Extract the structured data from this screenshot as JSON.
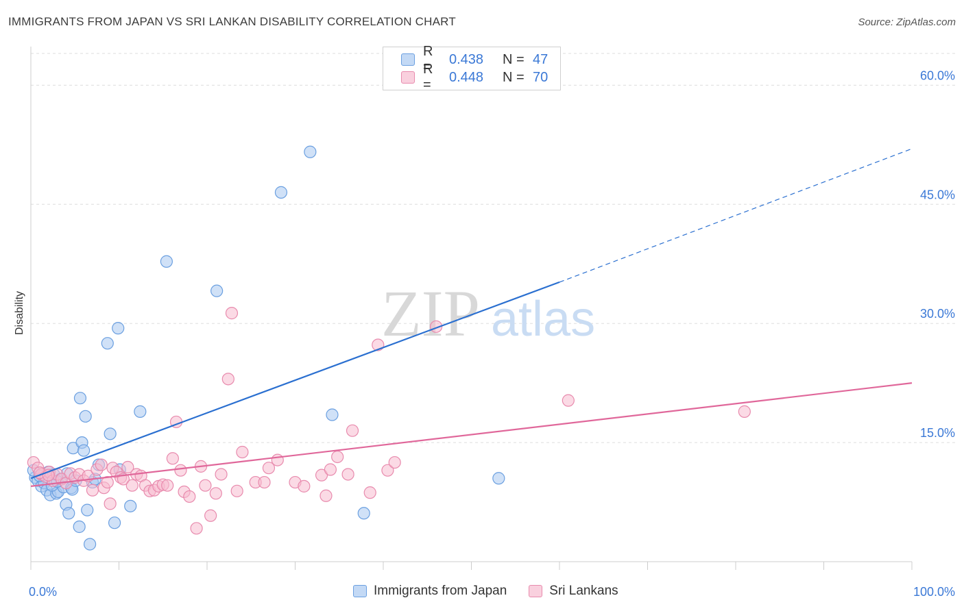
{
  "header": {
    "title": "IMMIGRANTS FROM JAPAN VS SRI LANKAN DISABILITY CORRELATION CHART",
    "source": "Source: ZipAtlas.com"
  },
  "legend": {
    "rows": [
      {
        "r_label": "R =",
        "r_value": "0.438",
        "n_label": "N =",
        "n_value": "47"
      },
      {
        "r_label": "R =",
        "r_value": "0.448",
        "n_label": "N =",
        "n_value": "70"
      }
    ],
    "bottom": [
      "Immigrants from Japan",
      "Sri Lankans"
    ]
  },
  "watermark": {
    "zip": "ZIP",
    "atlas": "atlas"
  },
  "colors": {
    "japan_fill": "#a9c8f0",
    "japan_stroke": "#6a9fe0",
    "japan_line": "#2a6fd0",
    "srilanka_fill": "#f7bcd0",
    "srilanka_stroke": "#e88aad",
    "srilanka_line": "#e0679a",
    "axis_text": "#3a78d6"
  },
  "chart_data": {
    "type": "scatter",
    "ylabel": "Disability",
    "xlabel": "",
    "xlim": [
      0,
      100
    ],
    "ylim": [
      0,
      64
    ],
    "x_tick_labels": [
      "0.0%",
      "100.0%"
    ],
    "y_ticks": [
      15,
      30,
      45,
      60
    ],
    "y_tick_labels": [
      "15.0%",
      "30.0%",
      "45.0%",
      "60.0%"
    ],
    "grid": "horizontal dashed",
    "legend_position": "top-center",
    "series": [
      {
        "name": "Immigrants from Japan",
        "points": [
          [
            0.5,
            10.6
          ],
          [
            0.8,
            10.2
          ],
          [
            1.2,
            9.5
          ],
          [
            1.5,
            9.9
          ],
          [
            1.8,
            9.0
          ],
          [
            2.0,
            11.3
          ],
          [
            2.2,
            8.4
          ],
          [
            2.6,
            11.0
          ],
          [
            2.9,
            8.6
          ],
          [
            3.1,
            8.8
          ],
          [
            3.4,
            10.4
          ],
          [
            3.7,
            9.4
          ],
          [
            4.1,
            11.1
          ],
          [
            4.0,
            7.2
          ],
          [
            4.3,
            6.1
          ],
          [
            4.6,
            9.3
          ],
          [
            4.8,
            14.3
          ],
          [
            4.7,
            9.1
          ],
          [
            5.1,
            10.2
          ],
          [
            5.5,
            4.4
          ],
          [
            5.6,
            20.6
          ],
          [
            5.8,
            15.0
          ],
          [
            6.0,
            14.0
          ],
          [
            6.2,
            18.3
          ],
          [
            6.4,
            6.5
          ],
          [
            6.7,
            2.2
          ],
          [
            7.0,
            10.0
          ],
          [
            7.3,
            10.4
          ],
          [
            7.7,
            12.2
          ],
          [
            8.7,
            27.5
          ],
          [
            9.0,
            16.1
          ],
          [
            9.5,
            4.9
          ],
          [
            9.9,
            29.4
          ],
          [
            10.1,
            11.6
          ],
          [
            11.3,
            7.0
          ],
          [
            12.4,
            18.9
          ],
          [
            15.4,
            37.8
          ],
          [
            21.1,
            34.1
          ],
          [
            28.4,
            46.5
          ],
          [
            31.7,
            51.6
          ],
          [
            34.2,
            18.5
          ],
          [
            37.8,
            6.1
          ],
          [
            53.1,
            10.5
          ],
          [
            0.3,
            11.5
          ],
          [
            1.0,
            10.8
          ],
          [
            2.4,
            9.6
          ],
          [
            3.0,
            10.1
          ]
        ]
      },
      {
        "name": "Sri Lankans",
        "points": [
          [
            0.3,
            12.5
          ],
          [
            0.8,
            11.8
          ],
          [
            1.2,
            11.0
          ],
          [
            1.7,
            10.7
          ],
          [
            2.1,
            11.3
          ],
          [
            2.5,
            10.2
          ],
          [
            3.0,
            11.0
          ],
          [
            3.5,
            10.4
          ],
          [
            4.0,
            9.9
          ],
          [
            4.5,
            11.1
          ],
          [
            5.0,
            10.6
          ],
          [
            5.5,
            11.0
          ],
          [
            6.0,
            10.2
          ],
          [
            6.5,
            10.8
          ],
          [
            7.0,
            9.0
          ],
          [
            7.5,
            11.6
          ],
          [
            8.0,
            12.2
          ],
          [
            8.3,
            9.3
          ],
          [
            8.7,
            10.0
          ],
          [
            9.0,
            7.3
          ],
          [
            9.3,
            11.8
          ],
          [
            9.7,
            11.3
          ],
          [
            10.2,
            10.6
          ],
          [
            10.5,
            10.4
          ],
          [
            11.0,
            11.9
          ],
          [
            11.5,
            9.6
          ],
          [
            12.0,
            11.0
          ],
          [
            12.5,
            10.8
          ],
          [
            13.0,
            9.6
          ],
          [
            13.5,
            8.9
          ],
          [
            14.0,
            9.0
          ],
          [
            14.5,
            9.5
          ],
          [
            15.0,
            9.7
          ],
          [
            15.5,
            9.6
          ],
          [
            16.1,
            13.0
          ],
          [
            16.5,
            17.6
          ],
          [
            17.0,
            11.5
          ],
          [
            17.4,
            8.8
          ],
          [
            18.0,
            8.2
          ],
          [
            18.8,
            4.2
          ],
          [
            19.3,
            12.0
          ],
          [
            19.8,
            9.6
          ],
          [
            20.4,
            5.8
          ],
          [
            21.0,
            8.6
          ],
          [
            21.6,
            11.0
          ],
          [
            22.4,
            23.0
          ],
          [
            22.8,
            31.3
          ],
          [
            23.4,
            8.9
          ],
          [
            24.0,
            13.8
          ],
          [
            25.5,
            10.0
          ],
          [
            26.5,
            10.0
          ],
          [
            27.0,
            11.8
          ],
          [
            28.0,
            12.8
          ],
          [
            30.0,
            10.0
          ],
          [
            31.0,
            9.5
          ],
          [
            33.0,
            10.9
          ],
          [
            33.5,
            8.3
          ],
          [
            34.0,
            11.6
          ],
          [
            34.8,
            13.2
          ],
          [
            36.0,
            11.0
          ],
          [
            36.5,
            16.5
          ],
          [
            38.5,
            8.7
          ],
          [
            39.4,
            27.3
          ],
          [
            40.5,
            11.5
          ],
          [
            41.3,
            12.5
          ],
          [
            46.0,
            29.6
          ],
          [
            61.0,
            20.3
          ],
          [
            81.0,
            18.9
          ],
          [
            1.0,
            11.2
          ],
          [
            2.0,
            10.9
          ]
        ]
      }
    ],
    "trend_lines": [
      {
        "series": "Immigrants from Japan",
        "x": [
          0,
          60
        ],
        "y": [
          10.5,
          35.2
        ],
        "dashed_extension_to": [
          100,
          52.0
        ]
      },
      {
        "series": "Sri Lankans",
        "x": [
          0,
          100
        ],
        "y": [
          9.5,
          22.5
        ]
      }
    ]
  }
}
